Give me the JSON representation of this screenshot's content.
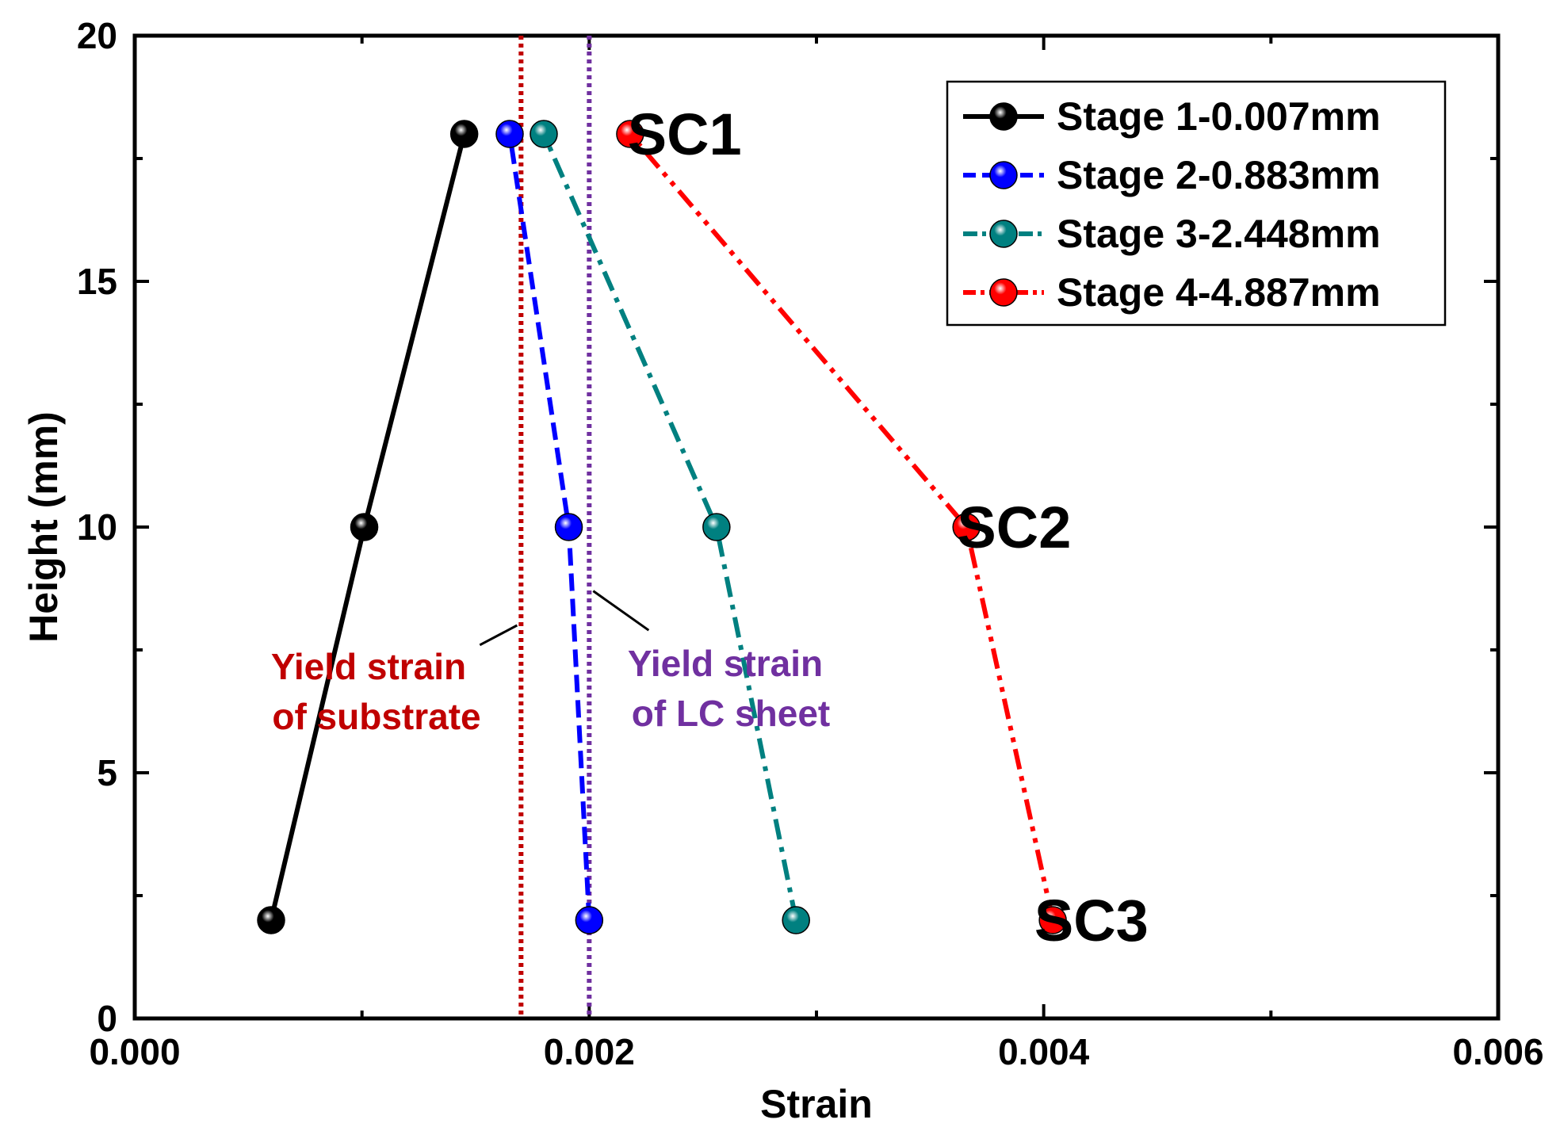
{
  "chart_data": {
    "type": "line",
    "title": "",
    "xlabel": "Strain",
    "ylabel": "Height (mm)",
    "xlim": [
      0.0,
      0.006
    ],
    "ylim": [
      0,
      20
    ],
    "xticks": [
      0.0,
      0.002,
      0.004,
      0.006
    ],
    "xtick_labels": [
      "0.000",
      "0.002",
      "0.004",
      "0.006"
    ],
    "yticks": [
      0,
      5,
      10,
      15,
      20
    ],
    "ytick_labels": [
      "0",
      "5",
      "10",
      "15",
      "20"
    ],
    "grid": false,
    "legend_position": "top-right",
    "series": [
      {
        "name": "Stage 1-0.007mm",
        "color": "#000000",
        "dash": "solid",
        "x": [
          0.0006,
          0.00101,
          0.00145
        ],
        "y": [
          2,
          10,
          18
        ]
      },
      {
        "name": "Stage 2-0.883mm",
        "color": "#0000ff",
        "dash": "dash",
        "x": [
          0.002,
          0.00191,
          0.00165
        ],
        "y": [
          2,
          10,
          18
        ]
      },
      {
        "name": "Stage 3-2.448mm",
        "color": "#008080",
        "dash": "dashdot",
        "x": [
          0.00291,
          0.00256,
          0.0018
        ],
        "y": [
          2,
          10,
          18
        ]
      },
      {
        "name": "Stage 4-4.887mm",
        "color": "#ff0000",
        "dash": "dashdotdot",
        "x": [
          0.00404,
          0.00366,
          0.00218
        ],
        "y": [
          2,
          10,
          18
        ]
      }
    ],
    "reference_lines": [
      {
        "name": "Yield strain of substrate",
        "x": 0.0017,
        "color": "#c00000",
        "lines": [
          "Yield strain",
          "of substrate"
        ]
      },
      {
        "name": "Yield strain of LC sheet",
        "x": 0.002,
        "color": "#7030a0",
        "lines": [
          "Yield strain",
          "of LC sheet"
        ]
      }
    ],
    "annotations": [
      {
        "text": "SC1",
        "x": 0.00242,
        "y": 18
      },
      {
        "text": "SC2",
        "x": 0.00387,
        "y": 10
      },
      {
        "text": "SC3",
        "x": 0.00421,
        "y": 2
      }
    ]
  }
}
